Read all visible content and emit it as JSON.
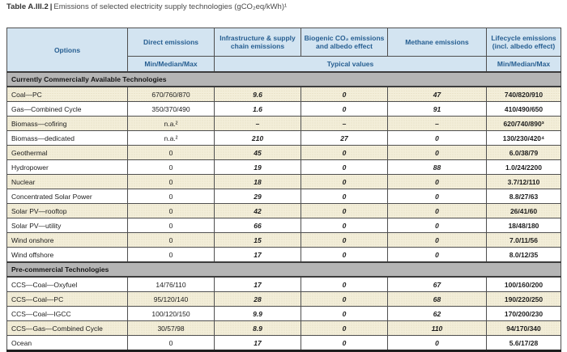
{
  "title": {
    "number": "Table A.III.2",
    "separator": "|",
    "text": "Emissions of selected electricity supply technologies (gCO₂eq/kWh)¹"
  },
  "table": {
    "header": {
      "options": "Options",
      "direct": "Direct emissions",
      "infrastructure": "Infrastructure & supply chain emissions",
      "biogenic": "Biogenic CO₂ emissions and albedo effect",
      "methane": "Methane emissions",
      "lifecycle": "Lifecycle emissions (incl. albedo effect)",
      "min_median_max_direct": "Min/Median/Max",
      "typical_values": "Typical values",
      "min_median_max_lifecycle": "Min/Median/Max"
    },
    "sections": [
      {
        "label": "Currently Commercially Available Technologies",
        "rows": [
          [
            "Coal—PC",
            "670/760/870",
            "9.6",
            "0",
            "47",
            "740/820/910"
          ],
          [
            "Gas—Combined Cycle",
            "350/370/490",
            "1.6",
            "0",
            "91",
            "410/490/650"
          ],
          [
            "Biomass—cofiring",
            "n.a.²",
            "–",
            "–",
            "–",
            "620/740/890³"
          ],
          [
            "Biomass—dedicated",
            "n.a.²",
            "210",
            "27",
            "0",
            "130/230/420⁴"
          ],
          [
            "Geothermal",
            "0",
            "45",
            "0",
            "0",
            "6.0/38/79"
          ],
          [
            "Hydropower",
            "0",
            "19",
            "0",
            "88",
            "1.0/24/2200"
          ],
          [
            "Nuclear",
            "0",
            "18",
            "0",
            "0",
            "3.7/12/110"
          ],
          [
            "Concentrated Solar Power",
            "0",
            "29",
            "0",
            "0",
            "8.8/27/63"
          ],
          [
            "Solar PV—rooftop",
            "0",
            "42",
            "0",
            "0",
            "26/41/60"
          ],
          [
            "Solar PV—utility",
            "0",
            "66",
            "0",
            "0",
            "18/48/180"
          ],
          [
            "Wind onshore",
            "0",
            "15",
            "0",
            "0",
            "7.0/11/56"
          ],
          [
            "Wind offshore",
            "0",
            "17",
            "0",
            "0",
            "8.0/12/35"
          ]
        ]
      },
      {
        "label": "Pre-commercial Technologies",
        "rows": [
          [
            "CCS—Coal—Oxyfuel",
            "14/76/110",
            "17",
            "0",
            "67",
            "100/160/200"
          ],
          [
            "CCS—Coal—PC",
            "95/120/140",
            "28",
            "0",
            "68",
            "190/220/250"
          ],
          [
            "CCS—Coal—IGCC",
            "100/120/150",
            "9.9",
            "0",
            "62",
            "170/200/230"
          ],
          [
            "CCS—Gas—Combined Cycle",
            "30/57/98",
            "8.9",
            "0",
            "110",
            "94/170/340"
          ],
          [
            "Ocean",
            "0",
            "17",
            "0",
            "0",
            "5.6/17/28"
          ]
        ]
      }
    ]
  },
  "colors": {
    "header_bg": "#d3e4f1",
    "header_text": "#265e91",
    "section_bg": "#b5b5b5",
    "row_beige": "#f3eed9",
    "row_white": "#ffffff",
    "border": "#4f4f4f"
  }
}
